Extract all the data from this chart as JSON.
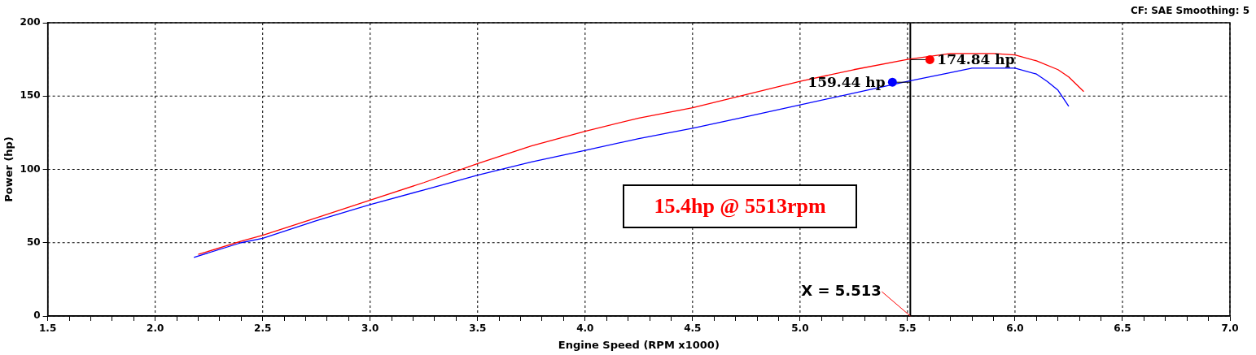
{
  "chart_data": {
    "type": "line",
    "xlabel": "Engine Speed (RPM x1000)",
    "ylabel": "Power (hp)",
    "xlim": [
      1.5,
      7.0
    ],
    "ylim": [
      0,
      200
    ],
    "xticks": [
      {
        "value": 1.5,
        "label": "1.5"
      },
      {
        "value": 1.6,
        "label": null
      },
      {
        "value": 1.7,
        "label": null
      },
      {
        "value": 1.8,
        "label": null
      },
      {
        "value": 1.9,
        "label": null
      },
      {
        "value": 2,
        "label": "2.0"
      },
      {
        "value": 2.1,
        "label": null
      },
      {
        "value": 2.2,
        "label": null
      },
      {
        "value": 2.3,
        "label": null
      },
      {
        "value": 2.4,
        "label": null
      },
      {
        "value": 2.5,
        "label": "2.5"
      },
      {
        "value": 2.6,
        "label": null
      },
      {
        "value": 2.7,
        "label": null
      },
      {
        "value": 2.8,
        "label": null
      },
      {
        "value": 2.9,
        "label": null
      },
      {
        "value": 3,
        "label": "3.0"
      },
      {
        "value": 3.1,
        "label": null
      },
      {
        "value": 3.2,
        "label": null
      },
      {
        "value": 3.3,
        "label": null
      },
      {
        "value": 3.4,
        "label": null
      },
      {
        "value": 3.5,
        "label": "3.5"
      },
      {
        "value": 3.6,
        "label": null
      },
      {
        "value": 3.7,
        "label": null
      },
      {
        "value": 3.8,
        "label": null
      },
      {
        "value": 3.9,
        "label": null
      },
      {
        "value": 4,
        "label": "4.0"
      },
      {
        "value": 4.1,
        "label": null
      },
      {
        "value": 4.2,
        "label": null
      },
      {
        "value": 4.3,
        "label": null
      },
      {
        "value": 4.4,
        "label": null
      },
      {
        "value": 4.5,
        "label": "4.5"
      },
      {
        "value": 4.6,
        "label": null
      },
      {
        "value": 4.7,
        "label": null
      },
      {
        "value": 4.8,
        "label": null
      },
      {
        "value": 4.9,
        "label": null
      },
      {
        "value": 5,
        "label": "5.0"
      },
      {
        "value": 5.1,
        "label": null
      },
      {
        "value": 5.2,
        "label": null
      },
      {
        "value": 5.3,
        "label": null
      },
      {
        "value": 5.4,
        "label": null
      },
      {
        "value": 5.5,
        "label": "5.5"
      },
      {
        "value": 5.6,
        "label": null
      },
      {
        "value": 5.7,
        "label": null
      },
      {
        "value": 5.8,
        "label": null
      },
      {
        "value": 5.9,
        "label": null
      },
      {
        "value": 6,
        "label": "6.0"
      },
      {
        "value": 6.1,
        "label": null
      },
      {
        "value": 6.2,
        "label": null
      },
      {
        "value": 6.3,
        "label": null
      },
      {
        "value": 6.4,
        "label": null
      },
      {
        "value": 6.5,
        "label": "6.5"
      },
      {
        "value": 6.6,
        "label": null
      },
      {
        "value": 6.7,
        "label": null
      },
      {
        "value": 6.8,
        "label": null
      },
      {
        "value": 6.9,
        "label": null
      },
      {
        "value": 7,
        "label": "7.0"
      }
    ],
    "yticks": [
      0,
      50,
      100,
      150,
      200
    ],
    "grid": true,
    "line_style": "solid",
    "marker": "none",
    "series": [
      {
        "color": "#ff0000",
        "x": [
          2.2,
          2.4,
          2.5,
          2.75,
          3.0,
          3.25,
          3.5,
          3.75,
          4.0,
          4.25,
          4.5,
          4.75,
          5.0,
          5.25,
          5.5,
          5.7,
          5.9,
          6.0,
          6.1,
          6.2,
          6.25,
          6.32
        ],
        "values": [
          42,
          51,
          55,
          67,
          79,
          91,
          104,
          116,
          126,
          135,
          142,
          151,
          160,
          168,
          175,
          179,
          179,
          178,
          174,
          168,
          163,
          153
        ]
      },
      {
        "color": "#0000ff",
        "x": [
          2.18,
          2.4,
          2.5,
          2.75,
          3.0,
          3.25,
          3.5,
          3.75,
          4.0,
          4.25,
          4.5,
          4.75,
          5.0,
          5.25,
          5.5,
          5.7,
          5.8,
          6.0,
          6.1,
          6.15,
          6.2,
          6.25
        ],
        "values": [
          40,
          50,
          53,
          65,
          76,
          86,
          96,
          105,
          113,
          121,
          128,
          136,
          144,
          152,
          160,
          166,
          169,
          169,
          165,
          160,
          154,
          143
        ]
      }
    ],
    "ref_lines": [
      {
        "axis": "x",
        "value": 5.513,
        "label": "X = 5.513",
        "color": "#000000",
        "line_style": "solid"
      }
    ],
    "annotations": [
      "CF: SAE  Smoothing: 5",
      "15.4hp @ 5513rpm",
      {
        "text": "159.44 hp",
        "x": 5.513,
        "y": 159.44
      },
      {
        "text": "174.84 hp",
        "x": 5.513,
        "y": 174.84
      }
    ]
  }
}
